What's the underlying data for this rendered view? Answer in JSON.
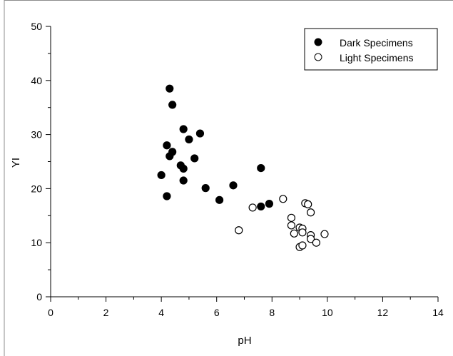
{
  "chart_data": {
    "type": "scatter",
    "title": "",
    "xlabel": "pH",
    "ylabel": "YI",
    "xlim": [
      0,
      14
    ],
    "ylim": [
      0,
      50
    ],
    "x_ticks": [
      0,
      2,
      4,
      6,
      8,
      10,
      12,
      14
    ],
    "y_ticks": [
      0,
      10,
      20,
      30,
      40,
      50
    ],
    "grid": false,
    "legend_position": "top-right",
    "series": [
      {
        "name": "Dark Specimens",
        "marker": "filled-circle",
        "color": "#000000",
        "points": [
          {
            "x": 4.0,
            "y": 22.5
          },
          {
            "x": 4.2,
            "y": 18.6
          },
          {
            "x": 4.2,
            "y": 28.0
          },
          {
            "x": 4.3,
            "y": 26.0
          },
          {
            "x": 4.3,
            "y": 38.5
          },
          {
            "x": 4.4,
            "y": 35.5
          },
          {
            "x": 4.4,
            "y": 26.8
          },
          {
            "x": 4.7,
            "y": 24.3
          },
          {
            "x": 4.8,
            "y": 31.0
          },
          {
            "x": 4.8,
            "y": 23.7
          },
          {
            "x": 4.8,
            "y": 21.5
          },
          {
            "x": 5.0,
            "y": 29.1
          },
          {
            "x": 5.2,
            "y": 25.6
          },
          {
            "x": 5.4,
            "y": 30.2
          },
          {
            "x": 5.6,
            "y": 20.1
          },
          {
            "x": 6.1,
            "y": 17.9
          },
          {
            "x": 6.6,
            "y": 20.6
          },
          {
            "x": 7.6,
            "y": 23.8
          },
          {
            "x": 7.6,
            "y": 16.7
          },
          {
            "x": 7.9,
            "y": 17.2
          }
        ]
      },
      {
        "name": "Light Specimens",
        "marker": "open-circle",
        "color": "#000000",
        "points": [
          {
            "x": 6.8,
            "y": 12.3
          },
          {
            "x": 7.3,
            "y": 16.5
          },
          {
            "x": 8.4,
            "y": 18.1
          },
          {
            "x": 8.7,
            "y": 14.6
          },
          {
            "x": 8.7,
            "y": 13.2
          },
          {
            "x": 8.8,
            "y": 11.7
          },
          {
            "x": 9.0,
            "y": 12.8
          },
          {
            "x": 9.0,
            "y": 9.2
          },
          {
            "x": 9.1,
            "y": 12.6
          },
          {
            "x": 9.1,
            "y": 11.9
          },
          {
            "x": 9.1,
            "y": 9.5
          },
          {
            "x": 9.2,
            "y": 17.3
          },
          {
            "x": 9.3,
            "y": 17.1
          },
          {
            "x": 9.4,
            "y": 15.6
          },
          {
            "x": 9.4,
            "y": 11.4
          },
          {
            "x": 9.4,
            "y": 10.7
          },
          {
            "x": 9.6,
            "y": 10.0
          },
          {
            "x": 9.9,
            "y": 11.6
          }
        ]
      }
    ]
  }
}
